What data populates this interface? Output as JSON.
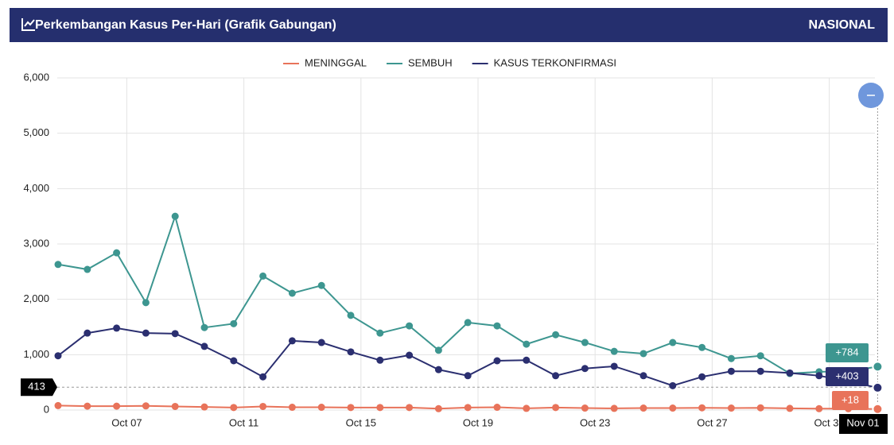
{
  "header": {
    "title": "Perkembangan Kasus Per-Hari (Grafik Gabungan)",
    "region": "NASIONAL"
  },
  "chart_data": {
    "type": "line",
    "categories": [
      null,
      null,
      null,
      "Oct 07",
      null,
      null,
      null,
      "Oct 11",
      null,
      null,
      null,
      "Oct 15",
      null,
      null,
      null,
      "Oct 19",
      null,
      null,
      null,
      "Oct 23",
      null,
      null,
      null,
      "Oct 27",
      null,
      null,
      null,
      "Oct 31",
      "Nov 01"
    ],
    "series": [
      {
        "name": "MENINGGAL",
        "color": "#e8735a",
        "values": [
          80,
          70,
          70,
          75,
          65,
          55,
          45,
          65,
          50,
          50,
          45,
          45,
          45,
          25,
          45,
          50,
          30,
          45,
          35,
          30,
          35,
          35,
          40,
          35,
          40,
          30,
          25,
          25,
          18
        ],
        "last_label": "+18"
      },
      {
        "name": "SEMBUH",
        "color": "#3d9690",
        "values": [
          2630,
          2540,
          2840,
          1940,
          3500,
          1490,
          1560,
          2420,
          2110,
          2250,
          1710,
          1390,
          1520,
          1080,
          1580,
          1520,
          1190,
          1360,
          1220,
          1060,
          1020,
          1220,
          1130,
          930,
          980,
          660,
          690,
          700,
          784
        ],
        "last_label": "+784"
      },
      {
        "name": "KASUS TERKONFIRMASI",
        "color": "#2b2f70",
        "values": [
          980,
          1390,
          1480,
          1390,
          1380,
          1150,
          890,
          600,
          1250,
          1220,
          1050,
          900,
          990,
          730,
          620,
          890,
          900,
          620,
          750,
          790,
          620,
          440,
          600,
          700,
          700,
          670,
          620,
          520,
          403
        ],
        "last_label": "+403"
      }
    ],
    "ylim": [
      0,
      6000
    ],
    "yticks": [
      0,
      {
        "value": 1000,
        "label": "1,000"
      },
      {
        "value": 2000,
        "label": "2,000"
      },
      {
        "value": 3000,
        "label": "3,000"
      },
      {
        "value": 4000,
        "label": "4,000"
      },
      {
        "value": 5000,
        "label": "5,000"
      },
      {
        "value": 6000,
        "label": "6,000"
      }
    ],
    "grid": true,
    "legend": "top",
    "crosshair_value": 413
  }
}
